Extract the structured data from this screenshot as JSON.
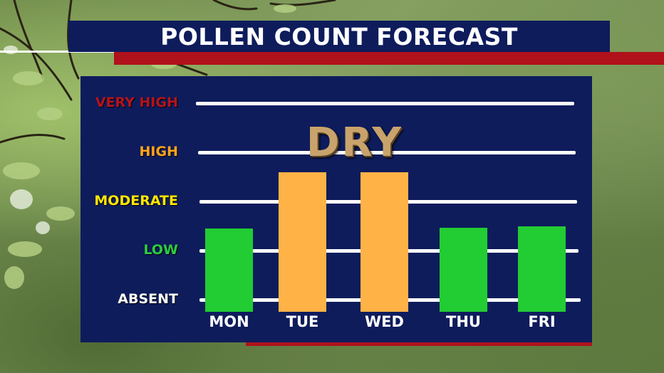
{
  "title": "POLLEN COUNT FORECAST",
  "chart_data": {
    "type": "bar",
    "title": "POLLEN COUNT FORECAST",
    "levels": [
      {
        "name": "ABSENT",
        "value": 0,
        "color": "#ffffff"
      },
      {
        "name": "LOW",
        "value": 1,
        "color": "#2ecc40"
      },
      {
        "name": "MODERATE",
        "value": 2,
        "color": "#ffe600"
      },
      {
        "name": "HIGH",
        "value": 3,
        "color": "#ffa41c"
      },
      {
        "name": "VERY HIGH",
        "value": 4,
        "color": "#b3141c"
      }
    ],
    "categories": [
      "MON",
      "TUE",
      "WED",
      "THU",
      "FRI"
    ],
    "values": [
      1.45,
      2.6,
      2.6,
      1.47,
      1.49
    ],
    "bar_colors": [
      "#22cc33",
      "#ffb347",
      "#ffb347",
      "#22cc33",
      "#22cc33"
    ],
    "ylim": [
      0,
      4
    ],
    "grid": true,
    "annotation": "DRY"
  }
}
